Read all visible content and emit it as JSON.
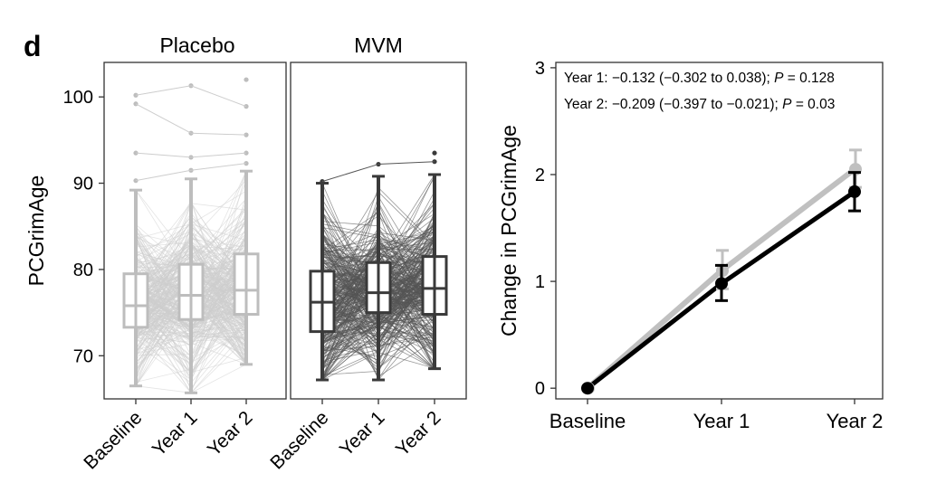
{
  "panel_letter": "d",
  "chart_data": [
    {
      "type": "box",
      "title": "Placebo",
      "ylabel": "PCGrimAge",
      "categories": [
        "Baseline",
        "Year 1",
        "Year 2"
      ],
      "ylim": [
        65,
        104
      ],
      "yticks": [
        70,
        80,
        90,
        100
      ],
      "color": "#bdbdbd",
      "line_color": "#cdcdcd",
      "boxes": [
        {
          "min": 66.5,
          "q1": 73.3,
          "median": 75.8,
          "q3": 79.5,
          "max": 89.2
        },
        {
          "min": 65.7,
          "q1": 74.2,
          "median": 77.0,
          "q3": 80.6,
          "max": 90.5
        },
        {
          "min": 69.0,
          "q1": 74.8,
          "median": 77.6,
          "q3": 81.8,
          "max": 91.4
        }
      ],
      "outliers": [
        [
          90.3,
          93.5,
          99.2,
          100.2
        ],
        [
          91.5,
          93.0,
          95.8,
          101.3
        ],
        [
          92.3,
          93.5,
          95.6,
          98.9,
          102.0
        ]
      ]
    },
    {
      "type": "box",
      "title": "MVM",
      "ylabel": "",
      "categories": [
        "Baseline",
        "Year 1",
        "Year 2"
      ],
      "ylim": [
        65,
        104
      ],
      "yticks": [
        70,
        80,
        90,
        100
      ],
      "color": "#3a3a3a",
      "line_color": "#555555",
      "boxes": [
        {
          "min": 67.2,
          "q1": 72.8,
          "median": 76.2,
          "q3": 79.8,
          "max": 90.0
        },
        {
          "min": 67.2,
          "q1": 75.0,
          "median": 77.3,
          "q3": 80.8,
          "max": 90.8
        },
        {
          "min": 68.5,
          "q1": 74.8,
          "median": 77.8,
          "q3": 81.5,
          "max": 91.0
        }
      ],
      "outliers": [
        [
          90.2
        ],
        [
          92.2
        ],
        [
          92.5,
          93.5
        ]
      ]
    },
    {
      "type": "line",
      "title": "",
      "ylabel": "Change in PCGrimAge",
      "categories": [
        "Baseline",
        "Year 1",
        "Year 2"
      ],
      "ylim": [
        -0.1,
        3.05
      ],
      "yticks": [
        0,
        1,
        2,
        3
      ],
      "series": [
        {
          "color": "#c0c0c0",
          "values": [
            0,
            1.1,
            2.05
          ],
          "err_low": [
            0,
            0.93,
            1.88
          ],
          "err_high": [
            0,
            1.29,
            2.23
          ]
        },
        {
          "color": "#000000",
          "values": [
            0,
            0.98,
            1.84
          ],
          "err_low": [
            0,
            0.82,
            1.66
          ],
          "err_high": [
            0,
            1.15,
            2.02
          ]
        }
      ],
      "annotations": [
        {
          "lead": "Year 1: −0.132 (−0.302 to 0.038); ",
          "p_label": "P",
          "p_value": " = 0.128"
        },
        {
          "lead": "Year 2: −0.209 (−0.397 to −0.021); ",
          "p_label": "P",
          "p_value": " = 0.03"
        }
      ]
    }
  ]
}
